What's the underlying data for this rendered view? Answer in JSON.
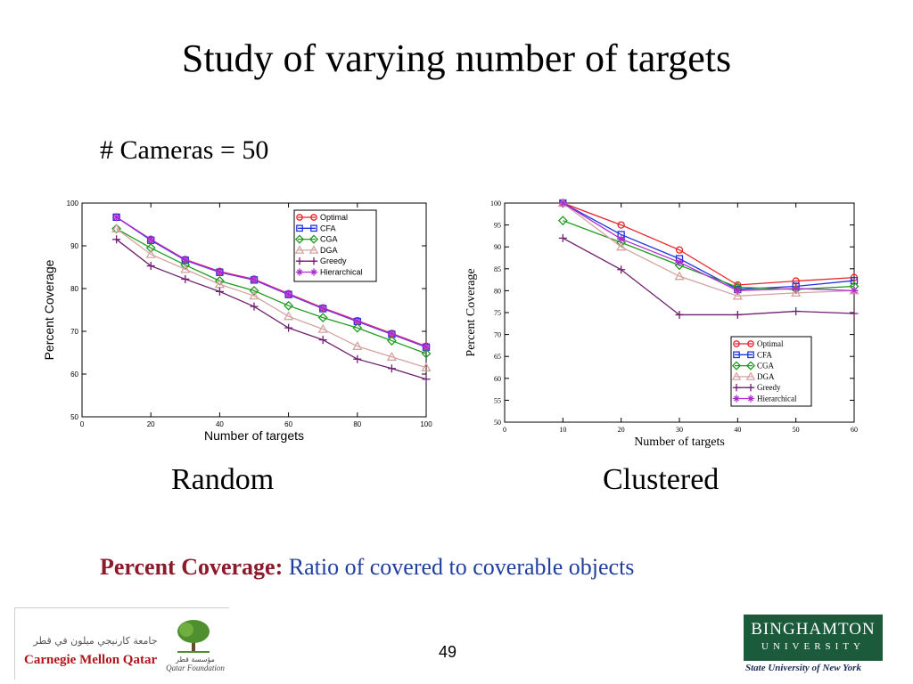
{
  "slide": {
    "title": "Study of varying number of targets",
    "subtitle": "# Cameras = 50",
    "definition_term": "Percent Coverage:",
    "definition_text": "Ratio of covered to coverable objects",
    "page_number": "49",
    "logos": {
      "left_arabic": "جامعة كارنيجي ميلون في قطر",
      "left_name": "Carnegie Mellon Qatar",
      "foundation_arabic": "مؤسسة قطر",
      "foundation_name": "Qatar Foundation",
      "right_name": "BINGHAMTON",
      "right_university": "UNIVERSITY",
      "right_sub": "State University of New York"
    }
  },
  "colors": {
    "Optimal": "#e8252c",
    "CFA": "#2233dd",
    "CGA": "#1e9b1e",
    "DGA": "#d4a3a0",
    "Greedy": "#6e1f6e",
    "Hierarchical": "#b02ad4",
    "term": "#8b1a2b",
    "desc": "#1f3f9a"
  },
  "chart_data": [
    {
      "type": "line",
      "caption": "Random",
      "xlabel": "Number of targets",
      "ylabel": "Percent Coverage",
      "xlim": [
        0,
        100
      ],
      "ylim": [
        50,
        100
      ],
      "xticks": [
        0,
        20,
        40,
        60,
        80,
        100
      ],
      "yticks": [
        50,
        60,
        70,
        80,
        90,
        100
      ],
      "legend_position": "top-right",
      "grid": false,
      "x": [
        10,
        20,
        30,
        40,
        50,
        60,
        70,
        80,
        90,
        100
      ],
      "series": [
        {
          "name": "Optimal",
          "marker": "circle",
          "values": [
            96.7,
            91.5,
            86.8,
            84.0,
            82.2,
            78.8,
            75.5,
            72.5,
            69.5,
            66.5
          ]
        },
        {
          "name": "CFA",
          "marker": "square",
          "values": [
            96.7,
            91.3,
            86.6,
            83.8,
            82.0,
            78.6,
            75.3,
            72.3,
            69.3,
            66.3
          ]
        },
        {
          "name": "CGA",
          "marker": "diamond",
          "values": [
            94.0,
            89.5,
            85.5,
            81.8,
            79.5,
            76.0,
            73.2,
            70.8,
            67.8,
            64.8
          ]
        },
        {
          "name": "DGA",
          "marker": "triangle",
          "values": [
            94.0,
            88.0,
            84.5,
            81.0,
            78.3,
            73.5,
            70.5,
            66.5,
            64.0,
            61.5
          ]
        },
        {
          "name": "Greedy",
          "marker": "plus",
          "values": [
            91.5,
            85.3,
            82.2,
            79.3,
            75.8,
            70.8,
            68.0,
            63.5,
            61.3,
            58.8
          ]
        },
        {
          "name": "Hierarchical",
          "marker": "star",
          "values": [
            96.7,
            91.5,
            86.7,
            83.9,
            82.1,
            78.7,
            75.4,
            72.4,
            69.4,
            66.4
          ]
        }
      ]
    },
    {
      "type": "line",
      "caption": "Clustered",
      "xlabel": "Number of targets",
      "ylabel": "Percent Coverage",
      "xlim": [
        0,
        60
      ],
      "ylim": [
        50,
        100
      ],
      "xticks": [
        0,
        10,
        20,
        30,
        40,
        50,
        60
      ],
      "yticks": [
        50,
        55,
        60,
        65,
        70,
        75,
        80,
        85,
        90,
        95,
        100
      ],
      "legend_position": "bottom-right",
      "grid": false,
      "x": [
        10,
        20,
        30,
        40,
        50,
        60
      ],
      "series": [
        {
          "name": "Optimal",
          "marker": "circle",
          "values": [
            100,
            95.0,
            89.3,
            81.3,
            82.2,
            83.0
          ]
        },
        {
          "name": "CFA",
          "marker": "square",
          "values": [
            100,
            92.8,
            87.3,
            80.3,
            81.0,
            82.3
          ]
        },
        {
          "name": "CGA",
          "marker": "diamond",
          "values": [
            96.0,
            91.0,
            85.8,
            80.8,
            80.3,
            81.0
          ]
        },
        {
          "name": "DGA",
          "marker": "triangle",
          "values": [
            100,
            90.0,
            83.3,
            78.8,
            79.5,
            80.0
          ]
        },
        {
          "name": "Greedy",
          "marker": "plus",
          "values": [
            92.0,
            84.8,
            74.5,
            74.5,
            75.3,
            74.8
          ]
        },
        {
          "name": "Hierarchical",
          "marker": "star",
          "values": [
            100,
            91.8,
            86.5,
            80.0,
            80.5,
            80.0
          ]
        }
      ]
    }
  ]
}
